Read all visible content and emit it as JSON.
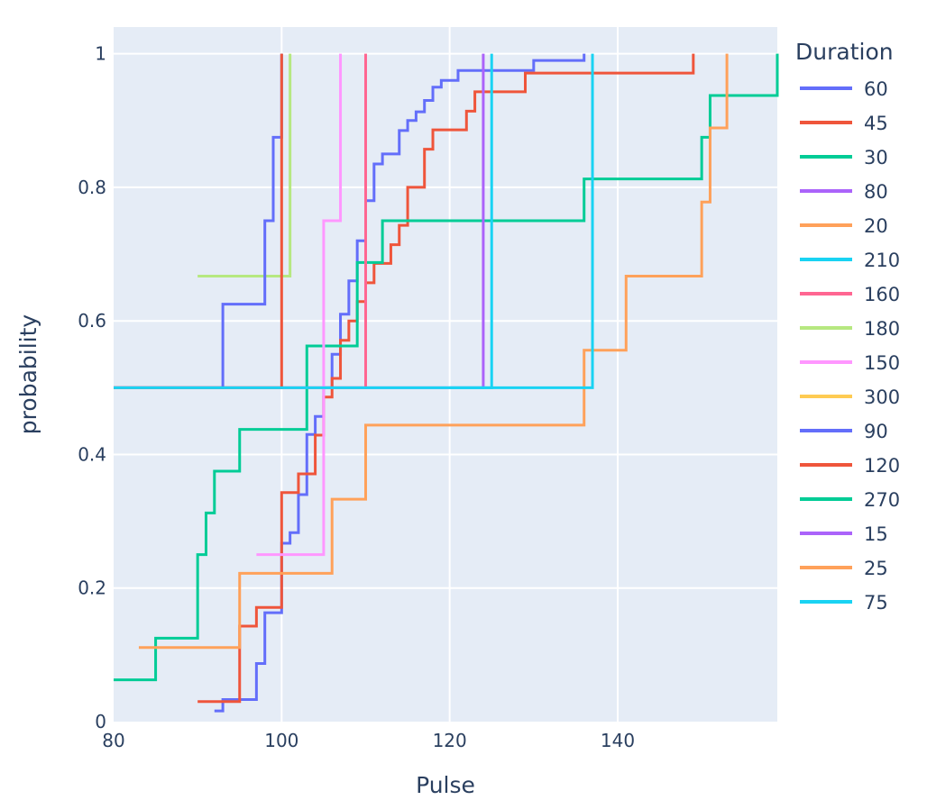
{
  "chart_data": {
    "type": "line",
    "subtype": "ecdf-step",
    "xlabel": "Pulse",
    "ylabel": "probability",
    "xlim": [
      80,
      159
    ],
    "ylim": [
      0,
      1.04
    ],
    "xticks": [
      80,
      100,
      120,
      140
    ],
    "yticks": [
      0,
      0.2,
      0.4,
      0.6,
      0.8,
      1
    ],
    "ytick_labels": [
      "0",
      "0.2",
      "0.4",
      "0.6",
      "0.8",
      "1"
    ],
    "grid": true,
    "legend": {
      "title": "Duration",
      "placement": "right"
    },
    "plot_bg": "#e5ecf6",
    "series": [
      {
        "name": "60",
        "color": "#636efa",
        "x": [
          92,
          93,
          97,
          98,
          100,
          101,
          102,
          103,
          104,
          105,
          106,
          107,
          108,
          109,
          110,
          111,
          112,
          114,
          115,
          116,
          117,
          118,
          119,
          121,
          130,
          136
        ],
        "y": [
          0.016,
          0.033,
          0.087,
          0.163,
          0.267,
          0.283,
          0.34,
          0.43,
          0.457,
          0.5,
          0.55,
          0.61,
          0.66,
          0.72,
          0.78,
          0.835,
          0.85,
          0.885,
          0.9,
          0.913,
          0.93,
          0.95,
          0.96,
          0.975,
          0.99,
          1.0
        ]
      },
      {
        "name": "45",
        "color": "#ef553b",
        "x": [
          90,
          95,
          97,
          100,
          102,
          104,
          105,
          106,
          107,
          108,
          109,
          110,
          111,
          113,
          114,
          115,
          117,
          118,
          122,
          123,
          124,
          126,
          129,
          149
        ],
        "y": [
          0.03,
          0.143,
          0.171,
          0.343,
          0.371,
          0.429,
          0.486,
          0.514,
          0.571,
          0.6,
          0.629,
          0.657,
          0.686,
          0.714,
          0.743,
          0.8,
          0.857,
          0.886,
          0.914,
          0.943,
          0.943,
          0.943,
          0.971,
          1.0
        ]
      },
      {
        "name": "30",
        "color": "#00cc96",
        "x": [
          80,
          85,
          90,
          91,
          92,
          95,
          103,
          109,
          112,
          136,
          150,
          151,
          159
        ],
        "y": [
          0.0625,
          0.125,
          0.25,
          0.3125,
          0.375,
          0.4375,
          0.5625,
          0.6875,
          0.75,
          0.8125,
          0.875,
          0.9375,
          1.0
        ]
      },
      {
        "name": "80",
        "color": "#ab63fa",
        "x": [
          80,
          124
        ],
        "y": [
          0.5,
          1.0
        ]
      },
      {
        "name": "20",
        "color": "#ffa15a",
        "x": [
          83,
          95,
          106,
          110,
          136,
          141,
          150,
          151,
          153
        ],
        "y": [
          0.111,
          0.222,
          0.333,
          0.444,
          0.556,
          0.667,
          0.778,
          0.889,
          1.0
        ]
      },
      {
        "name": "210",
        "color": "#19d3f3",
        "x": [
          120,
          137
        ],
        "y": [
          0.5,
          1.0
        ]
      },
      {
        "name": "160",
        "color": "#ff6692",
        "x": [
          80,
          110
        ],
        "y": [
          0.5,
          1.0
        ]
      },
      {
        "name": "180",
        "color": "#b6e880",
        "x": [
          90,
          101
        ],
        "y": [
          0.667,
          1.0
        ]
      },
      {
        "name": "150",
        "color": "#ff97ff",
        "x": [
          97,
          105,
          107
        ],
        "y": [
          0.25,
          0.75,
          1.0
        ]
      },
      {
        "name": "300",
        "color": "#fecb52",
        "x": [],
        "y": []
      },
      {
        "name": "90",
        "color": "#636efa",
        "x": [
          80,
          90,
          93,
          98,
          99,
          100
        ],
        "y": [
          0.5,
          0.5,
          0.625,
          0.75,
          0.875,
          1.0
        ]
      },
      {
        "name": "120",
        "color": "#ef553b",
        "x": [
          80,
          100
        ],
        "y": [
          0.5,
          1.0
        ]
      },
      {
        "name": "270",
        "color": "#00cc96",
        "x": [],
        "y": []
      },
      {
        "name": "15",
        "color": "#ab63fa",
        "x": [],
        "y": []
      },
      {
        "name": "25",
        "color": "#ffa15a",
        "x": [],
        "y": []
      },
      {
        "name": "75",
        "color": "#19d3f3",
        "x": [
          80,
          125
        ],
        "y": [
          0.5,
          1.0
        ]
      }
    ]
  }
}
